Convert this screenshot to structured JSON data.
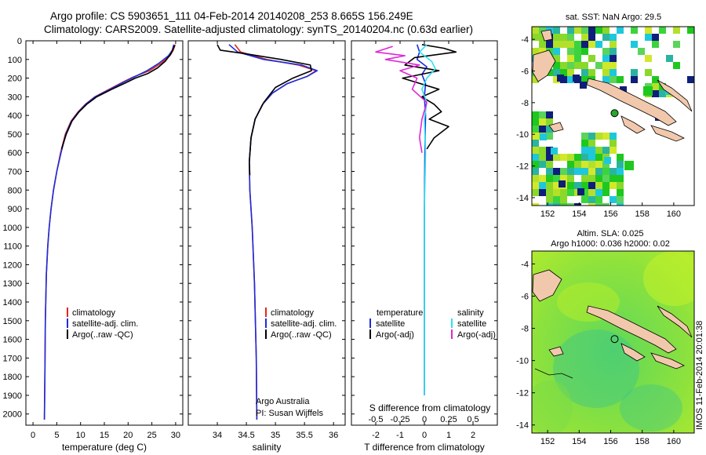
{
  "titles": {
    "line1": "Argo profile: CS 5903651_111 04-Feb-2014 20140208_253 8.665S 156.249E",
    "line2": "Climatology: CARS2009. Satellite-adjusted climatology: synTS_20140204.nc (0.63d earlier)"
  },
  "colors": {
    "climatology": "#e0271f",
    "satellite": "#1c2cdc",
    "argo": "#000000",
    "sal_satellite": "#2ee0ee",
    "sal_argo": "#e026d6",
    "land": "#f2c8ac",
    "sea_dark": "#0e1e7a",
    "sea_cyan": "#1ec8dc",
    "sea_green": "#1ec81e"
  },
  "footer_stamp": "IMOS 11-Feb-2014 20:01:38",
  "chart_data": [
    {
      "type": "line",
      "name": "temperature-panel",
      "xlabel": "temperature (deg C)",
      "ylabel": "",
      "xlim": [
        -1.5,
        31.5
      ],
      "ylim": [
        2060,
        0
      ],
      "xticks": [
        0,
        5,
        10,
        15,
        20,
        25,
        30
      ],
      "yticks": [
        0,
        100,
        200,
        300,
        400,
        500,
        600,
        700,
        800,
        900,
        1000,
        1100,
        1200,
        1300,
        1400,
        1500,
        1600,
        1700,
        1800,
        1900,
        2000
      ],
      "legend": [
        "climatology",
        "satellite-adj. clim.",
        "Argo(..raw -QC)"
      ],
      "series": [
        {
          "name": "climatology",
          "color": "#e0271f",
          "x": [
            29.9,
            29.5,
            28.8,
            27.0,
            24.5,
            21.0,
            19.0,
            16.0,
            13.0,
            11.0,
            9.5,
            8.0,
            6.8,
            5.8,
            5.0,
            4.3,
            3.8,
            3.4,
            3.1,
            2.8,
            2.6,
            2.5,
            2.4
          ],
          "y": [
            20,
            50,
            80,
            120,
            160,
            195,
            220,
            260,
            300,
            340,
            380,
            430,
            500,
            600,
            700,
            800,
            900,
            1000,
            1100,
            1250,
            1500,
            1800,
            2030
          ]
        },
        {
          "name": "satellite",
          "color": "#1c2cdc",
          "x": [
            29.6,
            29.3,
            28.5,
            26.5,
            24.0,
            21.2,
            19.2,
            16.2,
            13.1,
            11.1,
            9.6,
            8.1,
            6.9,
            5.9,
            5.0,
            4.3,
            3.8,
            3.4,
            3.1,
            2.8,
            2.6,
            2.5,
            2.4
          ],
          "y": [
            20,
            50,
            80,
            120,
            160,
            195,
            220,
            260,
            300,
            340,
            380,
            430,
            500,
            600,
            700,
            800,
            900,
            1000,
            1100,
            1250,
            1500,
            1800,
            2030
          ]
        },
        {
          "name": "argo",
          "color": "#000000",
          "x": [
            29.8,
            29.0,
            27.8,
            26.2,
            24.2,
            21.5,
            19.5,
            16.4,
            13.4,
            11.3,
            9.7,
            8.2,
            7.0,
            6.0
          ],
          "y": [
            25,
            70,
            110,
            145,
            175,
            200,
            225,
            262,
            300,
            340,
            380,
            430,
            500,
            580
          ]
        }
      ]
    },
    {
      "type": "line",
      "name": "salinity-panel",
      "xlabel": "salinity",
      "xlim": [
        33.5,
        36.2
      ],
      "ylim": [
        2060,
        0
      ],
      "xticks": [
        34,
        34.5,
        35,
        35.5,
        36
      ],
      "legend": [
        "climatology",
        "satellite-adj. clim.",
        "Argo(..raw -QC)"
      ],
      "annotation": [
        "Argo Australia",
        "PI: Susan Wijffels"
      ],
      "series": [
        {
          "name": "climatology",
          "color": "#e0271f",
          "x": [
            34.3,
            34.4,
            34.85,
            35.4,
            35.7,
            35.55,
            35.2,
            34.95,
            34.78,
            34.65,
            34.58,
            34.55,
            34.56,
            34.6,
            34.64,
            34.67,
            34.68
          ],
          "y": [
            20,
            60,
            100,
            130,
            160,
            190,
            230,
            280,
            340,
            420,
            520,
            650,
            800,
            1000,
            1300,
            1700,
            2030
          ]
        },
        {
          "name": "satellite",
          "color": "#1c2cdc",
          "x": [
            34.2,
            34.35,
            34.8,
            35.45,
            35.72,
            35.55,
            35.2,
            34.95,
            34.78,
            34.65,
            34.58,
            34.55,
            34.56,
            34.6,
            34.64,
            34.67,
            34.68
          ],
          "y": [
            20,
            60,
            100,
            130,
            160,
            190,
            230,
            280,
            340,
            420,
            520,
            650,
            800,
            1000,
            1300,
            1700,
            2030
          ]
        },
        {
          "name": "argo",
          "color": "#000000",
          "x": [
            34.0,
            34.05,
            34.5,
            35.1,
            35.6,
            35.62,
            35.3,
            35.0,
            34.8,
            34.65,
            34.58,
            34.55,
            34.56
          ],
          "y": [
            20,
            50,
            70,
            100,
            130,
            160,
            200,
            250,
            330,
            420,
            520,
            650,
            720
          ]
        }
      ]
    },
    {
      "type": "line",
      "name": "difference-panel",
      "xlabel": "T difference from climatology",
      "top_xlabel": "S difference from climatology",
      "xlim": [
        -3,
        3
      ],
      "ylim": [
        2060,
        0
      ],
      "xticks_bottom": [
        -2,
        -1,
        0,
        1,
        2
      ],
      "xticks_top": [
        -0.5,
        -0.25,
        0,
        0.25,
        0.5
      ],
      "legend_left_title": "temperature",
      "legend_right_title": "salinity",
      "legend": [
        "satellite",
        "Argo(-adj)",
        "satellite",
        "Argo(-adj)"
      ],
      "series": [
        {
          "name": "T satellite",
          "color": "#1c2cdc",
          "x": [
            -0.3,
            -0.2,
            -0.3,
            0.1,
            -0.1,
            0.05,
            0.0,
            0.05,
            0.02,
            0.0,
            0.0,
            0.0
          ],
          "y": [
            20,
            60,
            100,
            140,
            180,
            230,
            300,
            400,
            600,
            900,
            1400,
            1900
          ]
        },
        {
          "name": "T argo",
          "color": "#000000",
          "x": [
            -0.1,
            0.8,
            1.3,
            -0.4,
            -0.8,
            0.6,
            -0.9,
            0.6,
            -0.1,
            0.4,
            0.7,
            0.2,
            1.0,
            0.4,
            0.1
          ],
          "y": [
            20,
            40,
            60,
            90,
            130,
            160,
            200,
            260,
            300,
            340,
            380,
            420,
            460,
            520,
            580
          ]
        },
        {
          "name": "S satellite",
          "color": "#2ee0ee",
          "x": [
            0.1,
            -0.2,
            0.3,
            0.45,
            0.1,
            -0.1,
            0.1,
            0.0,
            0.05,
            0.0,
            0.0,
            0.0
          ],
          "y": [
            20,
            60,
            110,
            150,
            200,
            260,
            330,
            420,
            600,
            900,
            1400,
            1900
          ]
        },
        {
          "name": "S argo",
          "color": "#e026d6",
          "x": [
            -1.3,
            -2.0,
            -0.8,
            -1.6,
            -0.2,
            -1.0,
            -0.3,
            -0.5,
            0.1,
            -0.1,
            -0.2,
            -0.1
          ],
          "y": [
            30,
            60,
            80,
            100,
            130,
            160,
            200,
            260,
            330,
            420,
            520,
            600
          ]
        }
      ]
    },
    {
      "type": "heatmap",
      "name": "sst-map",
      "title": "sat. SST: NaN Argo: 29.5",
      "xlim": [
        151,
        161.3
      ],
      "ylim": [
        -14.5,
        -3.2
      ],
      "xticks": [
        152,
        154,
        156,
        158,
        160
      ],
      "yticks": [
        -4,
        -6,
        -8,
        -10,
        -12,
        -14
      ],
      "argo_position": [
        156.249,
        -8.665
      ]
    },
    {
      "type": "heatmap",
      "name": "sla-map",
      "title": "Altim. SLA: 0.025",
      "subtitle": "Argo h1000: 0.036 h2000: 0.02",
      "xlim": [
        151,
        161.3
      ],
      "ylim": [
        -14.5,
        -3.2
      ],
      "xticks": [
        152,
        154,
        156,
        158,
        160
      ],
      "yticks": [
        -4,
        -6,
        -8,
        -10,
        -12,
        -14
      ],
      "argo_position": [
        156.249,
        -8.665
      ]
    }
  ]
}
